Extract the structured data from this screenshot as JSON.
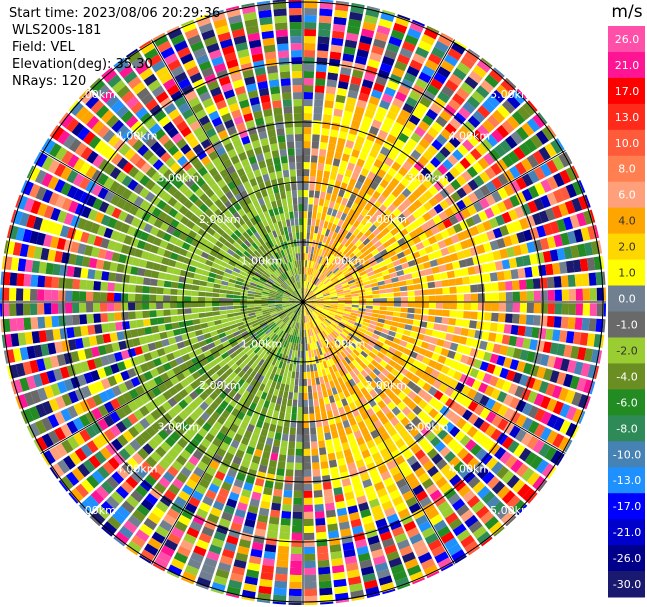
{
  "info": {
    "start_time": "Start time: 2023/08/06 20:29:36",
    "site": "WLS200s-181",
    "field": "Field: VEL",
    "elevation": "Elevation(deg): 35.30",
    "nrays": "NRays: 120"
  },
  "colorbar": {
    "unit": "m/s",
    "ticks": [
      "26.0",
      "21.0",
      "17.0",
      "13.0",
      "10.0",
      "8.0",
      "6.0",
      "4.0",
      "2.0",
      "1.0",
      "0.0",
      "-1.0",
      "-2.0",
      "-4.0",
      "-6.0",
      "-8.0",
      "-10.0",
      "-13.0",
      "-17.0",
      "-21.0",
      "-26.0",
      "-30.0"
    ],
    "colors": [
      "#ff4fa8",
      "#ff1493",
      "#ff0000",
      "#ff2a1a",
      "#ff5a3a",
      "#ff7f50",
      "#ffa07a",
      "#ffa500",
      "#ffd700",
      "#ffff00",
      "#708090",
      "#696969",
      "#9acd32",
      "#6b8e23",
      "#228b22",
      "#2e8b57",
      "#4682b4",
      "#1e90ff",
      "#0000ff",
      "#0000cd",
      "#00008b",
      "#191970"
    ]
  },
  "chart_data": {
    "type": "heatmap",
    "projection": "polar (PPI scan)",
    "field": "VEL",
    "units": "m/s",
    "range_ring_labels": [
      "1.00km",
      "2.00km",
      "3.00km",
      "4.00km",
      "5.00km"
    ],
    "range_rings_km": [
      1,
      2,
      3,
      4,
      5
    ],
    "max_range_km": 5,
    "nrays": 120,
    "color_levels": [
      26.0,
      21.0,
      17.0,
      13.0,
      10.0,
      8.0,
      6.0,
      4.0,
      2.0,
      1.0,
      0.0,
      -1.0,
      -2.0,
      -4.0,
      -6.0,
      -8.0,
      -10.0,
      -13.0,
      -17.0,
      -21.0,
      -26.0,
      -30.0
    ],
    "pattern": {
      "west_sector": "negative velocities (-2 to -8 m/s, greens)",
      "east_sector": "positive velocities (1 to 6 m/s, yellows/oranges)",
      "outer_ranges": "noise across full color scale"
    }
  }
}
